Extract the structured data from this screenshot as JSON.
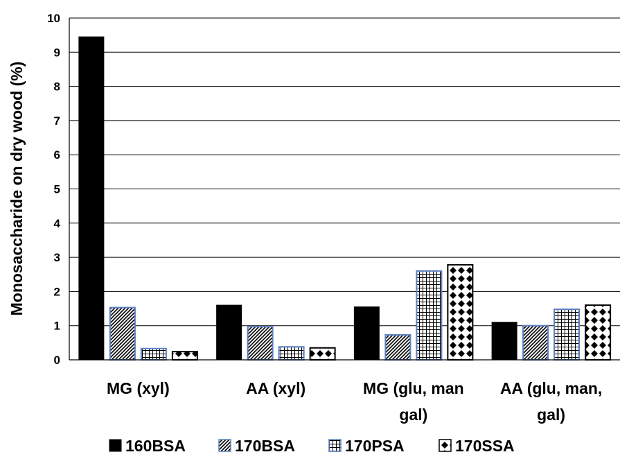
{
  "chart_data": {
    "type": "bar",
    "title": "",
    "xlabel": "",
    "ylabel": "Monosaccharide on dry  wood (%)",
    "ylim": [
      0,
      10
    ],
    "yticks": [
      "0",
      "1",
      "2",
      "3",
      "4",
      "5",
      "6",
      "7",
      "8",
      "9",
      "10"
    ],
    "grid": "horizontal",
    "legend_position": "bottom",
    "categories": [
      [
        "MG (xyl)"
      ],
      [
        "AA (xyl)"
      ],
      [
        "MG (glu, man",
        "gal)"
      ],
      [
        "AA (glu, man,",
        "gal)"
      ]
    ],
    "series": [
      {
        "name": "160BSA",
        "pattern": "solid",
        "color": "#000000",
        "values": [
          9.45,
          1.6,
          1.55,
          1.1
        ]
      },
      {
        "name": "170BSA",
        "pattern": "diagonal",
        "color": "#5b7fbf",
        "values": [
          1.53,
          0.97,
          0.73,
          1.0
        ]
      },
      {
        "name": "170PSA",
        "pattern": "grid",
        "color": "#5b7fbf",
        "values": [
          0.33,
          0.38,
          2.6,
          1.48
        ]
      },
      {
        "name": "170SSA",
        "pattern": "diamond",
        "color": "#000000",
        "values": [
          0.24,
          0.35,
          2.78,
          1.6
        ]
      }
    ]
  }
}
